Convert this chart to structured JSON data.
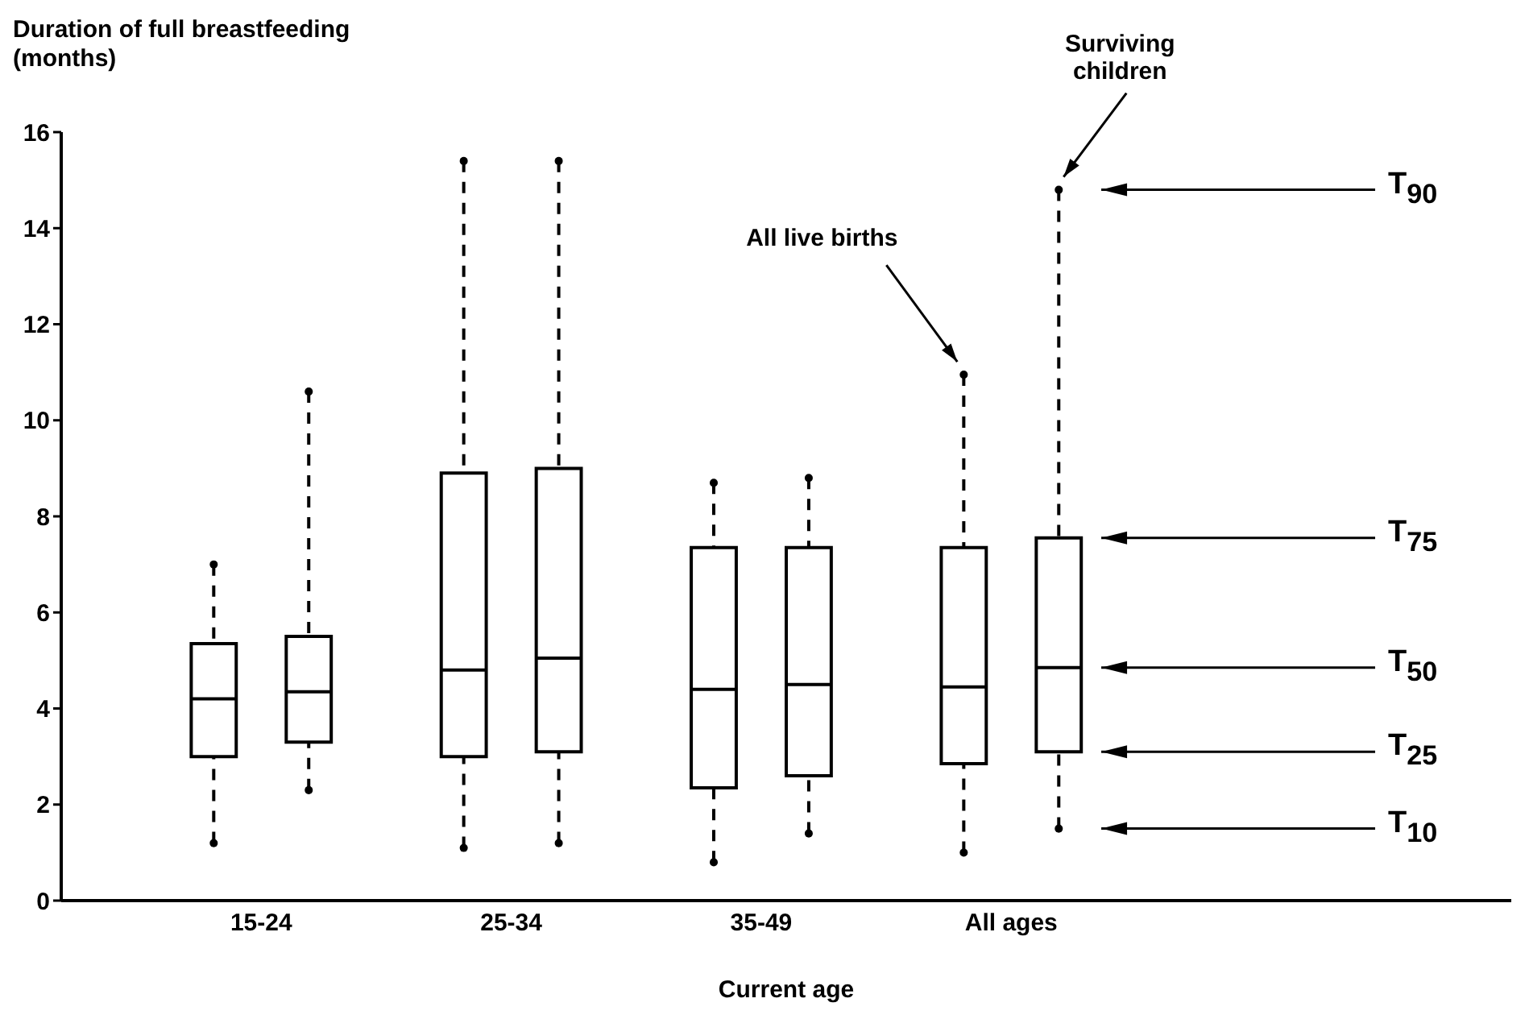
{
  "chart_data": {
    "type": "box",
    "xlabel": "Current age",
    "ylabel": "Duration of full breastfeeding (months)",
    "categories": [
      "15-24",
      "25-34",
      "35-49",
      "All ages"
    ],
    "ylim": [
      0,
      16
    ],
    "yticks": [
      0,
      2,
      4,
      6,
      8,
      10,
      12,
      14,
      16
    ],
    "series": [
      {
        "color": "#000000",
        "boxes": [
          {
            "low": 1.2,
            "q1": 3.0,
            "median": 4.2,
            "q3": 5.35,
            "high": 7.0
          },
          {
            "low": 1.1,
            "q1": 3.0,
            "median": 4.8,
            "q3": 8.9,
            "high": 15.4
          },
          {
            "low": 0.8,
            "q1": 2.35,
            "median": 4.4,
            "q3": 7.35,
            "high": 8.7
          },
          {
            "low": 1.0,
            "q1": 2.85,
            "median": 4.45,
            "q3": 7.35,
            "high": 10.95
          }
        ]
      },
      {
        "color": "#000000",
        "boxes": [
          {
            "low": 2.3,
            "q1": 3.3,
            "median": 4.35,
            "q3": 5.5,
            "high": 10.6
          },
          {
            "low": 1.2,
            "q1": 3.1,
            "median": 5.05,
            "q3": 9.0,
            "high": 15.4
          },
          {
            "low": 1.4,
            "q1": 2.6,
            "median": 4.5,
            "q3": 7.35,
            "high": 8.8
          },
          {
            "low": 1.5,
            "q1": 3.1,
            "median": 4.85,
            "q3": 7.55,
            "high": 14.8
          }
        ]
      }
    ],
    "annotations": [
      "All live births",
      "Surviving children",
      "T$_{90}$",
      "T$_{75}$",
      "T$_{50}$",
      "T$_{25}$",
      "T$_{10}$"
    ]
  }
}
